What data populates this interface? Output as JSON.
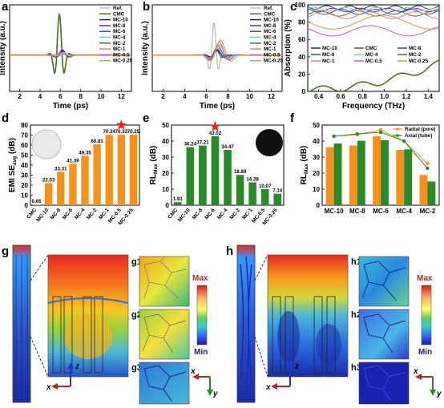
{
  "panel_labels": {
    "a": "a",
    "b": "b",
    "c": "c",
    "d": "d",
    "e": "e",
    "f": "f",
    "g": "g",
    "h": "h",
    "g1": "g1",
    "g2": "g2",
    "g3": "g3",
    "h1": "h1",
    "h2": "h2",
    "h3": "h3"
  },
  "legend_names": [
    "Ref.",
    "CMC",
    "MC-10",
    "MC-8",
    "MC-6",
    "MC-4",
    "MC-2",
    "MC-1",
    "MC-0.5",
    "MC-0.25"
  ],
  "series_colors": {
    "Ref.": "#c0c0c0",
    "CMC": "#4a6b1e",
    "MC-10": "#1f2a5a",
    "MC-8": "#7d2a7a",
    "MC-6": "#2850c8",
    "MC-4": "#7ec8e0",
    "MC-2": "#3d7a2a",
    "MC-1": "#e87a7a",
    "MC-0.5": "#c060c0",
    "MC-0.25": "#c89a50"
  },
  "colorbar": {
    "max": "Max",
    "min": "Min"
  },
  "axes_labels": {
    "x": "x",
    "y": "y",
    "z": "z"
  },
  "chart_data": [
    {
      "id": "a",
      "type": "line",
      "xlabel": "Time (ps)",
      "ylabel": "Intensity (a.u.)",
      "xlim": [
        1,
        13
      ],
      "xticks": [
        2,
        4,
        6,
        8,
        10,
        12
      ],
      "series": [
        {
          "name": "Ref."
        },
        {
          "name": "CMC"
        },
        {
          "name": "MC-10"
        },
        {
          "name": "MC-8"
        },
        {
          "name": "MC-6"
        },
        {
          "name": "MC-4"
        },
        {
          "name": "MC-2"
        },
        {
          "name": "MC-1"
        },
        {
          "name": "MC-0.5"
        },
        {
          "name": "MC-0.25"
        }
      ]
    },
    {
      "id": "b",
      "type": "line",
      "xlabel": "Time (ps)",
      "ylabel": "Intensity (a.u.)",
      "xlim": [
        1,
        13
      ],
      "xticks": [
        2,
        4,
        6,
        8,
        10,
        12
      ],
      "series": [
        {
          "name": "Ref."
        },
        {
          "name": "CMC"
        },
        {
          "name": "MC-10"
        },
        {
          "name": "MC-8"
        },
        {
          "name": "MC-6"
        },
        {
          "name": "MC-4"
        },
        {
          "name": "MC-2"
        },
        {
          "name": "MC-1"
        },
        {
          "name": "MC-0.5"
        },
        {
          "name": "MC-0.25"
        }
      ]
    },
    {
      "id": "c",
      "type": "line",
      "xlabel": "Frequency (THz)",
      "ylabel": "Absorption (%)",
      "xlim": [
        0.3,
        1.5
      ],
      "xticks": [
        0.4,
        0.6,
        0.8,
        1.0,
        1.2,
        1.4
      ],
      "ylim": [
        0,
        100
      ],
      "yticks": [
        0,
        20,
        40,
        60,
        80,
        100
      ],
      "series": [
        {
          "name": "MC-10"
        },
        {
          "name": "CMC"
        },
        {
          "name": "MC-8"
        },
        {
          "name": "MC-6"
        },
        {
          "name": "MC-4"
        },
        {
          "name": "MC-2"
        },
        {
          "name": "MC-1"
        },
        {
          "name": "MC-0.5"
        },
        {
          "name": "MC-0.25"
        }
      ]
    },
    {
      "id": "d",
      "type": "bar",
      "ylabel": "EMI SE",
      "ylabel_sub": "avg",
      "ylabel_unit": " (dB)",
      "categories": [
        "CMC",
        "MC-10",
        "MC-8",
        "MC-6",
        "MC-4",
        "MC-2",
        "MC-1",
        "MC-0.5",
        "MC-0.25"
      ],
      "values": [
        0.65,
        22.03,
        33.31,
        41.39,
        49.35,
        60.81,
        70.24,
        70.32,
        70.25
      ],
      "labels": [
        "0.65",
        "22.03",
        "33.31",
        "41.39",
        "49.35",
        "60.81",
        "70.24",
        "70.32",
        "70.25"
      ],
      "ylim": [
        0,
        80
      ],
      "yticks": [
        0,
        10,
        20,
        30,
        40,
        50,
        60,
        70,
        80
      ],
      "color": "#f5921e",
      "star_index": 7
    },
    {
      "id": "e",
      "type": "bar",
      "ylabel": "RL",
      "ylabel_sub": "Max",
      "ylabel_unit": " (dB)",
      "categories": [
        "CMC",
        "MC-10",
        "MC-8",
        "MC-6",
        "MC-4",
        "MC-2",
        "MC-1",
        "MC-0.5",
        "MC-0.25"
      ],
      "values": [
        1.91,
        36.24,
        37.21,
        43.02,
        34.47,
        18.89,
        14.28,
        10.07,
        7.14
      ],
      "labels": [
        "1.91",
        "36.24",
        "37.21",
        "43.02",
        "34.47",
        "18.89",
        "14.28",
        "10.07",
        "7.14"
      ],
      "ylim": [
        0,
        50
      ],
      "yticks": [
        0,
        10,
        20,
        30,
        40,
        50
      ],
      "color": "#2a8a2a",
      "star_index": 3
    },
    {
      "id": "f",
      "type": "bar",
      "ylabel": "RL",
      "ylabel_sub": "Max",
      "ylabel_unit": " (dB)",
      "categories": [
        "MC-10",
        "MC-8",
        "MC-6",
        "MC-4",
        "MC-2"
      ],
      "series": [
        {
          "name": "Radial (pore)",
          "values": [
            36.24,
            37.21,
            43.02,
            34.47,
            18.89
          ],
          "color": "#f5921e"
        },
        {
          "name": "Axial (tube)",
          "values": [
            38.5,
            40.2,
            40.5,
            34.8,
            14.8
          ],
          "color": "#2a8a2a"
        }
      ],
      "line_series": [
        {
          "name": "Radial (pore)",
          "values": [
            43,
            44,
            47,
            40,
            26
          ],
          "color": "#f5921e"
        },
        {
          "name": "Axial (tube)",
          "values": [
            43,
            44.5,
            45.5,
            40,
            23
          ],
          "color": "#2a8a2a"
        }
      ],
      "ylim": [
        0,
        50
      ],
      "yticks": [
        0,
        10,
        20,
        30,
        40,
        50
      ],
      "legend_position": "top-right"
    }
  ]
}
